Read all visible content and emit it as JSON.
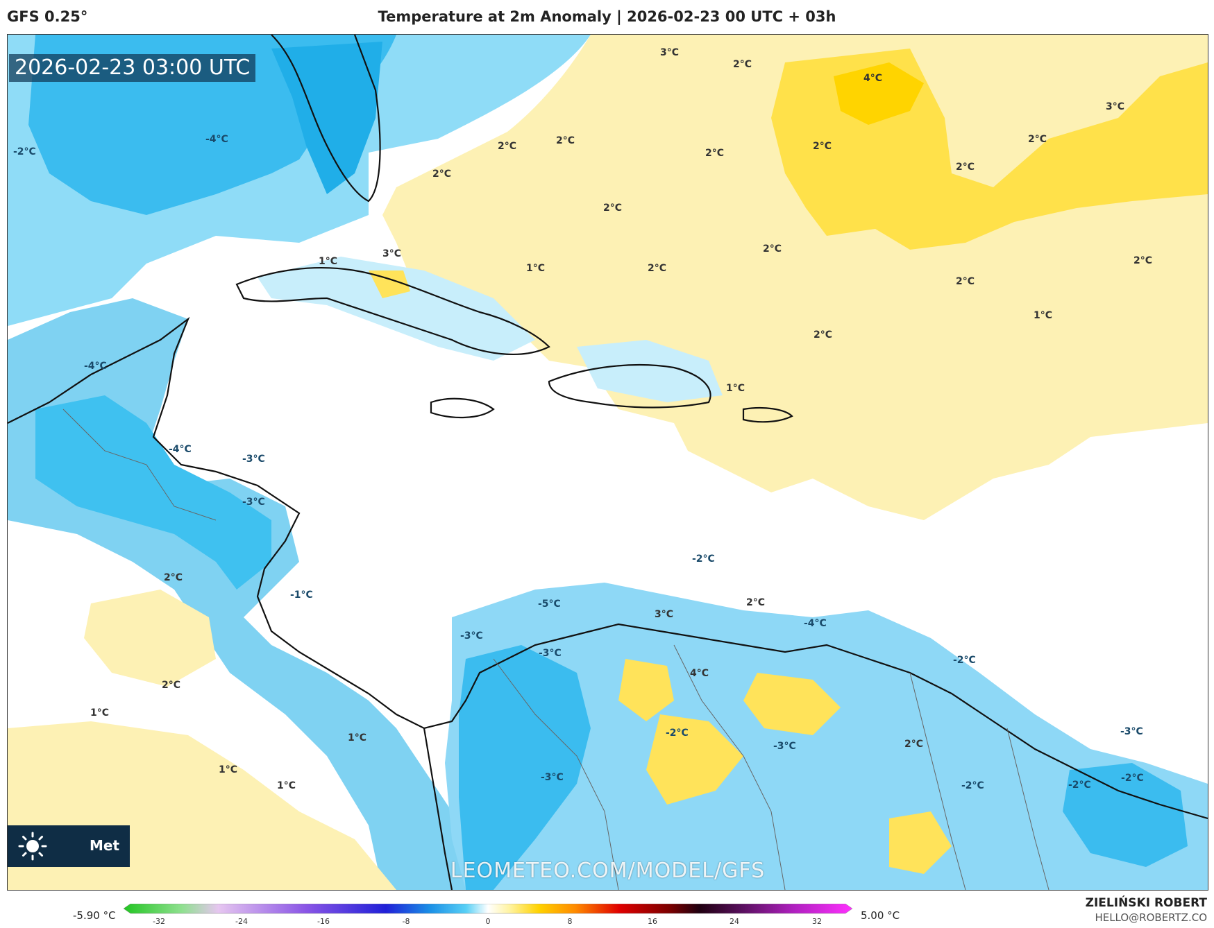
{
  "header": {
    "model": "GFS 0.25°",
    "title": "Temperature at 2m Anomaly | 2026-02-23 00 UTC + 03h"
  },
  "map": {
    "timestamp": "2026-02-23 03:00 UTC",
    "watermark": "LEOMETEO.COM/MODEL/GFS",
    "logo_text": "Met",
    "labels": [
      "3°C",
      "2°C",
      "4°C",
      "3°C",
      "-2°C",
      "-4°C",
      "2°C",
      "2°C",
      "2°C",
      "2°C",
      "2°C",
      "2°C",
      "2°C",
      "2°C",
      "2°C",
      "1°C",
      "3°C",
      "1°C",
      "2°C",
      "2°C",
      "2°C",
      "1°C",
      "2°C",
      "1°C",
      "-4°C",
      "-4°C",
      "-3°C",
      "-3°C",
      "2°C",
      "-1°C",
      "-5°C",
      "3°C",
      "-2°C",
      "2°C",
      "-4°C",
      "-3°C",
      "-3°C",
      "4°C",
      "-2°C",
      "2°C",
      "1°C",
      "1°C",
      "1°C",
      "1°C",
      "-2°C",
      "-3°C",
      "-3°C",
      "2°C",
      "-2°C",
      "-3°C",
      "-2°C",
      "-2°C"
    ]
  },
  "colorbar": {
    "min_label": "-5.90 °C",
    "max_label": "5.00 °C",
    "ticks": [
      "-32",
      "-24",
      "-16",
      "-8",
      "0",
      "8",
      "16",
      "24",
      "32"
    ]
  },
  "footer": {
    "author": "ZIELIŃSKI ROBERT",
    "email": "HELLO@ROBERTZ.CO"
  },
  "colors": {
    "cold_strong": "#2ab6ee",
    "cold_mid": "#7fd6f6",
    "cold_light": "#c8eefb",
    "warm_light": "#fdf1b4",
    "warm_mid": "#ffe35a",
    "warm_strong": "#ffd400",
    "neutral": "#ffffff"
  }
}
